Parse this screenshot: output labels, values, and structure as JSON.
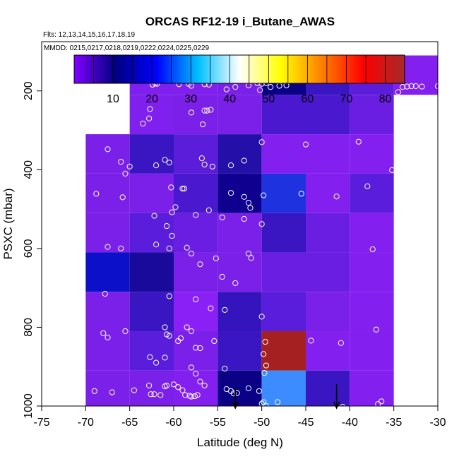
{
  "chart_data": {
    "type": "heatmap",
    "title": "ORCAS RF12-19 i_Butane_AWAS",
    "subtitle_flights": "Flts: 12,13,14,15,16,17,18,19",
    "subtitle_dates": "MMDD: 0215,0217,0218,0219,0222,0224,0225,0229",
    "xlabel": "Latitude (deg N)",
    "ylabel": "PSXC (mbar)",
    "xlim": [
      -75,
      -30
    ],
    "ylim": [
      1000,
      75
    ],
    "x_ticks": [
      -75,
      -70,
      -65,
      -60,
      -55,
      -50,
      -45,
      -40,
      -35,
      -30
    ],
    "x_tick_labels": [
      "-75",
      "-70",
      "-65",
      "-60",
      "-55",
      "-50",
      "-45",
      "-40",
      "-35",
      "-30"
    ],
    "y_ticks": [
      200,
      400,
      600,
      800,
      1000
    ],
    "y_tick_labels": [
      "200",
      "400",
      "600",
      "800",
      "1000"
    ],
    "colorbar": {
      "range": [
        0,
        85
      ],
      "ticks": [
        10,
        20,
        30,
        40,
        50,
        60,
        70,
        80
      ],
      "tick_labels": [
        "10",
        "20",
        "30",
        "40",
        "50",
        "60",
        "70",
        "80"
      ],
      "stops": [
        "#7f00ff",
        "#00007f",
        "#0000ff",
        "#00bfff",
        "#ffffff",
        "#ffff00",
        "#ff7f00",
        "#ff0000",
        "#a52a2a"
      ]
    },
    "cells": [
      {
        "x0": -65,
        "x1": -60,
        "p0": 110,
        "p1": 210,
        "color": "#8020ee"
      },
      {
        "x0": -60,
        "x1": -55,
        "p0": 110,
        "p1": 210,
        "color": "#8020ee"
      },
      {
        "x0": -55,
        "x1": -50,
        "p0": 110,
        "p1": 210,
        "color": "#7b20e8"
      },
      {
        "x0": -50,
        "x1": -45,
        "p0": 110,
        "p1": 210,
        "color": "#0a0085"
      },
      {
        "x0": -45,
        "x1": -40,
        "p0": 110,
        "p1": 210,
        "color": "#3a16c2"
      },
      {
        "x0": -40,
        "x1": -35,
        "p0": 110,
        "p1": 210,
        "color": "#5c1ddb"
      },
      {
        "x0": -35,
        "x1": -30,
        "p0": 110,
        "p1": 210,
        "color": "#8320f0"
      },
      {
        "x0": -65,
        "x1": -60,
        "p0": 210,
        "p1": 310,
        "color": "#8020ee"
      },
      {
        "x0": -60,
        "x1": -55,
        "p0": 210,
        "p1": 310,
        "color": "#7b20e8"
      },
      {
        "x0": -55,
        "x1": -50,
        "p0": 210,
        "p1": 310,
        "color": "#7b20e8"
      },
      {
        "x0": -50,
        "x1": -45,
        "p0": 210,
        "p1": 310,
        "color": "#4a19cf"
      },
      {
        "x0": -45,
        "x1": -40,
        "p0": 210,
        "p1": 310,
        "color": "#4a19cf"
      },
      {
        "x0": -40,
        "x1": -35,
        "p0": 210,
        "p1": 310,
        "color": "#6a1ee2"
      },
      {
        "x0": -70,
        "x1": -65,
        "p0": 310,
        "p1": 410,
        "color": "#7b20e8"
      },
      {
        "x0": -65,
        "x1": -60,
        "p0": 310,
        "p1": 410,
        "color": "#3a16c2"
      },
      {
        "x0": -60,
        "x1": -55,
        "p0": 310,
        "p1": 410,
        "color": "#5c1ddb"
      },
      {
        "x0": -55,
        "x1": -50,
        "p0": 310,
        "p1": 410,
        "color": "#2410a8"
      },
      {
        "x0": -50,
        "x1": -45,
        "p0": 310,
        "p1": 410,
        "color": "#8320f0"
      },
      {
        "x0": -45,
        "x1": -40,
        "p0": 310,
        "p1": 410,
        "color": "#8320f0"
      },
      {
        "x0": -40,
        "x1": -35,
        "p0": 310,
        "p1": 410,
        "color": "#8320f0"
      },
      {
        "x0": -70,
        "x1": -65,
        "p0": 410,
        "p1": 510,
        "color": "#7b20e8"
      },
      {
        "x0": -65,
        "x1": -60,
        "p0": 410,
        "p1": 510,
        "color": "#7b20e8"
      },
      {
        "x0": -60,
        "x1": -55,
        "p0": 410,
        "p1": 510,
        "color": "#4a19cf"
      },
      {
        "x0": -55,
        "x1": -50,
        "p0": 410,
        "p1": 510,
        "color": "#0f0090"
      },
      {
        "x0": -50,
        "x1": -45,
        "p0": 410,
        "p1": 510,
        "color": "#1e32e0"
      },
      {
        "x0": -45,
        "x1": -40,
        "p0": 410,
        "p1": 510,
        "color": "#8320f0"
      },
      {
        "x0": -40,
        "x1": -35,
        "p0": 410,
        "p1": 510,
        "color": "#5a1ddb"
      },
      {
        "x0": -70,
        "x1": -65,
        "p0": 510,
        "p1": 610,
        "color": "#7b20e8"
      },
      {
        "x0": -65,
        "x1": -60,
        "p0": 510,
        "p1": 610,
        "color": "#5a1ddb"
      },
      {
        "x0": -60,
        "x1": -55,
        "p0": 510,
        "p1": 610,
        "color": "#6a1ee2"
      },
      {
        "x0": -55,
        "x1": -50,
        "p0": 510,
        "p1": 610,
        "color": "#7b20e8"
      },
      {
        "x0": -50,
        "x1": -45,
        "p0": 510,
        "p1": 610,
        "color": "#3a16c2"
      },
      {
        "x0": -45,
        "x1": -40,
        "p0": 510,
        "p1": 610,
        "color": "#6a1ee2"
      },
      {
        "x0": -40,
        "x1": -35,
        "p0": 510,
        "p1": 610,
        "color": "#8320f0"
      },
      {
        "x0": -70,
        "x1": -65,
        "p0": 610,
        "p1": 710,
        "color": "#0c10c8"
      },
      {
        "x0": -65,
        "x1": -60,
        "p0": 610,
        "p1": 710,
        "color": "#1a0a9c"
      },
      {
        "x0": -60,
        "x1": -55,
        "p0": 610,
        "p1": 710,
        "color": "#7b20e8"
      },
      {
        "x0": -55,
        "x1": -50,
        "p0": 610,
        "p1": 710,
        "color": "#7b20e8"
      },
      {
        "x0": -50,
        "x1": -45,
        "p0": 610,
        "p1": 710,
        "color": "#6a1ee2"
      },
      {
        "x0": -45,
        "x1": -40,
        "p0": 610,
        "p1": 710,
        "color": "#6a1ee2"
      },
      {
        "x0": -40,
        "x1": -35,
        "p0": 610,
        "p1": 710,
        "color": "#8320f0"
      },
      {
        "x0": -70,
        "x1": -65,
        "p0": 710,
        "p1": 810,
        "color": "#7b20e8"
      },
      {
        "x0": -65,
        "x1": -60,
        "p0": 710,
        "p1": 810,
        "color": "#3a16c2"
      },
      {
        "x0": -60,
        "x1": -55,
        "p0": 710,
        "p1": 810,
        "color": "#8a20f5"
      },
      {
        "x0": -55,
        "x1": -50,
        "p0": 710,
        "p1": 810,
        "color": "#3514bd"
      },
      {
        "x0": -50,
        "x1": -45,
        "p0": 710,
        "p1": 810,
        "color": "#5a1ddb"
      },
      {
        "x0": -45,
        "x1": -40,
        "p0": 710,
        "p1": 810,
        "color": "#7b20e8"
      },
      {
        "x0": -40,
        "x1": -35,
        "p0": 710,
        "p1": 810,
        "color": "#8320f0"
      },
      {
        "x0": -70,
        "x1": -65,
        "p0": 810,
        "p1": 910,
        "color": "#7b20e8"
      },
      {
        "x0": -65,
        "x1": -60,
        "p0": 810,
        "p1": 910,
        "color": "#5a1ddb"
      },
      {
        "x0": -60,
        "x1": -55,
        "p0": 810,
        "p1": 910,
        "color": "#7b20e8"
      },
      {
        "x0": -55,
        "x1": -50,
        "p0": 810,
        "p1": 910,
        "color": "#3a16c2"
      },
      {
        "x0": -50,
        "x1": -45,
        "p0": 810,
        "p1": 910,
        "color": "#a52020"
      },
      {
        "x0": -45,
        "x1": -40,
        "p0": 810,
        "p1": 910,
        "color": "#8320f0"
      },
      {
        "x0": -40,
        "x1": -35,
        "p0": 810,
        "p1": 910,
        "color": "#8320f0"
      },
      {
        "x0": -70,
        "x1": -65,
        "p0": 910,
        "p1": 1000,
        "color": "#7b20e8"
      },
      {
        "x0": -65,
        "x1": -60,
        "p0": 910,
        "p1": 1000,
        "color": "#7b20e8"
      },
      {
        "x0": -60,
        "x1": -55,
        "p0": 910,
        "p1": 1000,
        "color": "#8320f0"
      },
      {
        "x0": -55,
        "x1": -50,
        "p0": 910,
        "p1": 1000,
        "color": "#0a0085"
      },
      {
        "x0": -50,
        "x1": -45,
        "p0": 910,
        "p1": 1000,
        "color": "#3c8cff"
      },
      {
        "x0": -45,
        "x1": -40,
        "p0": 910,
        "p1": 1000,
        "color": "#3a16c2"
      },
      {
        "x0": -40,
        "x1": -35,
        "p0": 910,
        "p1": 1000,
        "color": "#8320f0"
      }
    ],
    "points": [
      [
        -62.1,
        180
      ],
      [
        -62.4,
        184
      ],
      [
        -61.9,
        182
      ],
      [
        -59.4,
        183
      ],
      [
        -58.3,
        182
      ],
      [
        -58.0,
        187
      ],
      [
        -56.5,
        183
      ],
      [
        -56.0,
        184
      ],
      [
        -54.0,
        196
      ],
      [
        -53.0,
        190
      ],
      [
        -51.5,
        186
      ],
      [
        -50.5,
        180
      ],
      [
        -50.0,
        182
      ],
      [
        -49.5,
        180
      ],
      [
        -50.2,
        198
      ],
      [
        -49.0,
        190
      ],
      [
        -48.0,
        187
      ],
      [
        -47.2,
        186
      ],
      [
        -34.5,
        203
      ],
      [
        -34.0,
        190
      ],
      [
        -33.5,
        189
      ],
      [
        -33.0,
        188
      ],
      [
        -32.5,
        188
      ],
      [
        -31.8,
        189
      ],
      [
        -30.0,
        188
      ],
      [
        -62.7,
        246
      ],
      [
        -63.5,
        283
      ],
      [
        -62.8,
        270
      ],
      [
        -58.0,
        255
      ],
      [
        -56.5,
        250
      ],
      [
        -56.2,
        250
      ],
      [
        -55.8,
        248
      ],
      [
        -56.7,
        285
      ],
      [
        -50.0,
        330
      ],
      [
        -45.0,
        336
      ],
      [
        -39.0,
        329
      ],
      [
        -67.5,
        348
      ],
      [
        -66.0,
        380
      ],
      [
        -65.0,
        392
      ],
      [
        -62.0,
        389
      ],
      [
        -60.5,
        382
      ],
      [
        -61.0,
        375
      ],
      [
        -56.5,
        387
      ],
      [
        -55.6,
        392
      ],
      [
        -53.5,
        389
      ],
      [
        -52.0,
        377
      ],
      [
        -56.8,
        371
      ],
      [
        -35.2,
        401
      ],
      [
        -65.5,
        410
      ],
      [
        -65.8,
        470
      ],
      [
        -68.8,
        461
      ],
      [
        -60.3,
        445
      ],
      [
        -59.0,
        448
      ],
      [
        -58.8,
        448
      ],
      [
        -52.0,
        469
      ],
      [
        -51.5,
        484
      ],
      [
        -51.3,
        497
      ],
      [
        -53.5,
        459
      ],
      [
        -49.8,
        465
      ],
      [
        -45.5,
        461
      ],
      [
        -41.5,
        468
      ],
      [
        -38.0,
        442
      ],
      [
        -62.2,
        517
      ],
      [
        -60.2,
        508
      ],
      [
        -59.8,
        495
      ],
      [
        -56.0,
        503
      ],
      [
        -54.5,
        521
      ],
      [
        -60.8,
        543
      ],
      [
        -60.2,
        568
      ],
      [
        -57.5,
        515
      ],
      [
        -52.0,
        525
      ],
      [
        -50.0,
        538
      ],
      [
        -67.5,
        596
      ],
      [
        -66.0,
        600
      ],
      [
        -62.0,
        590
      ],
      [
        -60.5,
        600
      ],
      [
        -58.5,
        598
      ],
      [
        -58.0,
        613
      ],
      [
        -57.0,
        640
      ],
      [
        -55.2,
        625
      ],
      [
        -54.5,
        672
      ],
      [
        -51.5,
        613
      ],
      [
        -51.2,
        624
      ],
      [
        -37.4,
        602
      ],
      [
        -67.8,
        715
      ],
      [
        -60.5,
        721
      ],
      [
        -57.5,
        729
      ],
      [
        -53.0,
        688
      ],
      [
        -54.2,
        756
      ],
      [
        -55.8,
        752
      ],
      [
        -68.0,
        815
      ],
      [
        -67.5,
        826
      ],
      [
        -65.5,
        810
      ],
      [
        -61.0,
        800
      ],
      [
        -60.8,
        818
      ],
      [
        -60.5,
        822
      ],
      [
        -59.2,
        828
      ],
      [
        -59.5,
        835
      ],
      [
        -58.0,
        810
      ],
      [
        -58.5,
        800
      ],
      [
        -57.5,
        852
      ],
      [
        -57.0,
        853
      ],
      [
        -55.4,
        835
      ],
      [
        -50.0,
        773
      ],
      [
        -49.6,
        837
      ],
      [
        -49.8,
        868
      ],
      [
        -44.4,
        834
      ],
      [
        -41.0,
        840
      ],
      [
        -37.0,
        806
      ],
      [
        -62.7,
        876
      ],
      [
        -62.0,
        890
      ],
      [
        -61.0,
        877
      ],
      [
        -58.0,
        902
      ],
      [
        -57.5,
        918
      ],
      [
        -56.5,
        948
      ],
      [
        -54.2,
        905
      ],
      [
        -49.5,
        897
      ],
      [
        -49.7,
        916
      ],
      [
        -69.0,
        962
      ],
      [
        -67.0,
        965
      ],
      [
        -64.5,
        960
      ],
      [
        -62.8,
        948
      ],
      [
        -62.6,
        970
      ],
      [
        -62.2,
        970
      ],
      [
        -61.5,
        972
      ],
      [
        -61.0,
        950
      ],
      [
        -60.8,
        948
      ],
      [
        -60.0,
        945
      ],
      [
        -59.5,
        952
      ],
      [
        -59.0,
        960
      ],
      [
        -58.7,
        972
      ],
      [
        -58.2,
        974
      ],
      [
        -58.0,
        976
      ],
      [
        -57.6,
        975
      ],
      [
        -57.3,
        972
      ],
      [
        -57.0,
        938
      ],
      [
        -54.0,
        957
      ],
      [
        -53.5,
        962
      ],
      [
        -53.2,
        968
      ],
      [
        -52.8,
        967
      ],
      [
        -51.5,
        955
      ],
      [
        -50.3,
        962
      ],
      [
        -50.0,
        994
      ],
      [
        -49.8,
        990
      ],
      [
        -49.5,
        1000
      ],
      [
        -48.2,
        990
      ],
      [
        -40.8,
        1002
      ],
      [
        -36.8,
        995
      ],
      [
        -36.4,
        988
      ]
    ],
    "arrows": [
      {
        "lat": -53.0,
        "p_top": 955,
        "p_tip": 1005
      },
      {
        "lat": -41.5,
        "p_top": 945,
        "p_tip": 1005
      }
    ],
    "colors": {
      "axis": "#000000",
      "point_stroke": "#ffffff"
    }
  }
}
